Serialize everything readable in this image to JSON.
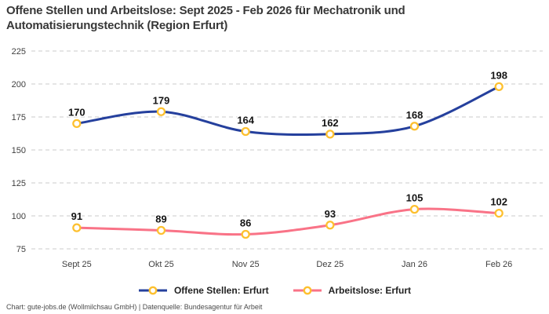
{
  "title_lines": [
    "Offene Stellen und Arbeitslose: Sept 2025 - Feb 2026 für Mechatronik und",
    "Automatisierungstechnik (Region Erfurt)"
  ],
  "chart_data": {
    "type": "line",
    "categories": [
      "Sept 25",
      "Okt 25",
      "Nov 25",
      "Dez 25",
      "Jan 26",
      "Feb 26"
    ],
    "series": [
      {
        "name": "Offene Stellen: Erfurt",
        "color": "#25409D",
        "values": [
          170,
          179,
          164,
          162,
          168,
          198
        ]
      },
      {
        "name": "Arbeitslose: Erfurt",
        "color": "#F97387",
        "values": [
          91,
          89,
          86,
          93,
          105,
          102
        ]
      }
    ],
    "marker_color": "#FDC02F",
    "marker_fill": "#FFFFFF",
    "ylim": [
      75,
      225
    ],
    "yticks": [
      75,
      100,
      125,
      150,
      175,
      200,
      225
    ],
    "grid": "dashed",
    "gridline_color": "#CBCBCB",
    "curve": "smooth",
    "data_labels": true,
    "legend_position": "bottom",
    "title": "Offene Stellen und Arbeitslose: Sept 2025 - Feb 2026 für Mechatronik und Automatisierungstechnik (Region Erfurt)",
    "xlabel": "",
    "ylabel": ""
  },
  "footer": "Chart: gute-jobs.de (Wollmilchsau GmbH) | Datenquelle: Bundesagentur für Arbeit",
  "colors": {
    "title_text": "#383838",
    "axis_label": "#3F3F3F",
    "data_label": "#141414",
    "footer_text": "#4A4A4A",
    "background": "#FFFFFF"
  }
}
